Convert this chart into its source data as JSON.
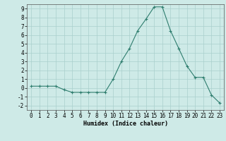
{
  "x": [
    0,
    1,
    2,
    3,
    4,
    5,
    6,
    7,
    8,
    9,
    10,
    11,
    12,
    13,
    14,
    15,
    16,
    17,
    18,
    19,
    20,
    21,
    22,
    23
  ],
  "y": [
    0.2,
    0.2,
    0.2,
    0.2,
    -0.2,
    -0.5,
    -0.5,
    -0.5,
    -0.5,
    -0.5,
    1.0,
    3.0,
    4.5,
    6.5,
    7.8,
    9.2,
    9.2,
    6.5,
    4.5,
    2.5,
    1.2,
    1.2,
    -0.8,
    -1.7
  ],
  "line_color": "#2e7d6e",
  "marker": "+",
  "marker_size": 3,
  "marker_lw": 0.8,
  "bg_color": "#ceeae7",
  "grid_color": "#aacfcc",
  "xlabel": "Humidex (Indice chaleur)",
  "ylim": [
    -2.5,
    9.5
  ],
  "xlim": [
    -0.5,
    23.5
  ],
  "yticks": [
    -2,
    -1,
    0,
    1,
    2,
    3,
    4,
    5,
    6,
    7,
    8,
    9
  ],
  "xticks": [
    0,
    1,
    2,
    3,
    4,
    5,
    6,
    7,
    8,
    9,
    10,
    11,
    12,
    13,
    14,
    15,
    16,
    17,
    18,
    19,
    20,
    21,
    22,
    23
  ],
  "label_fontsize": 6,
  "tick_fontsize": 5.5
}
